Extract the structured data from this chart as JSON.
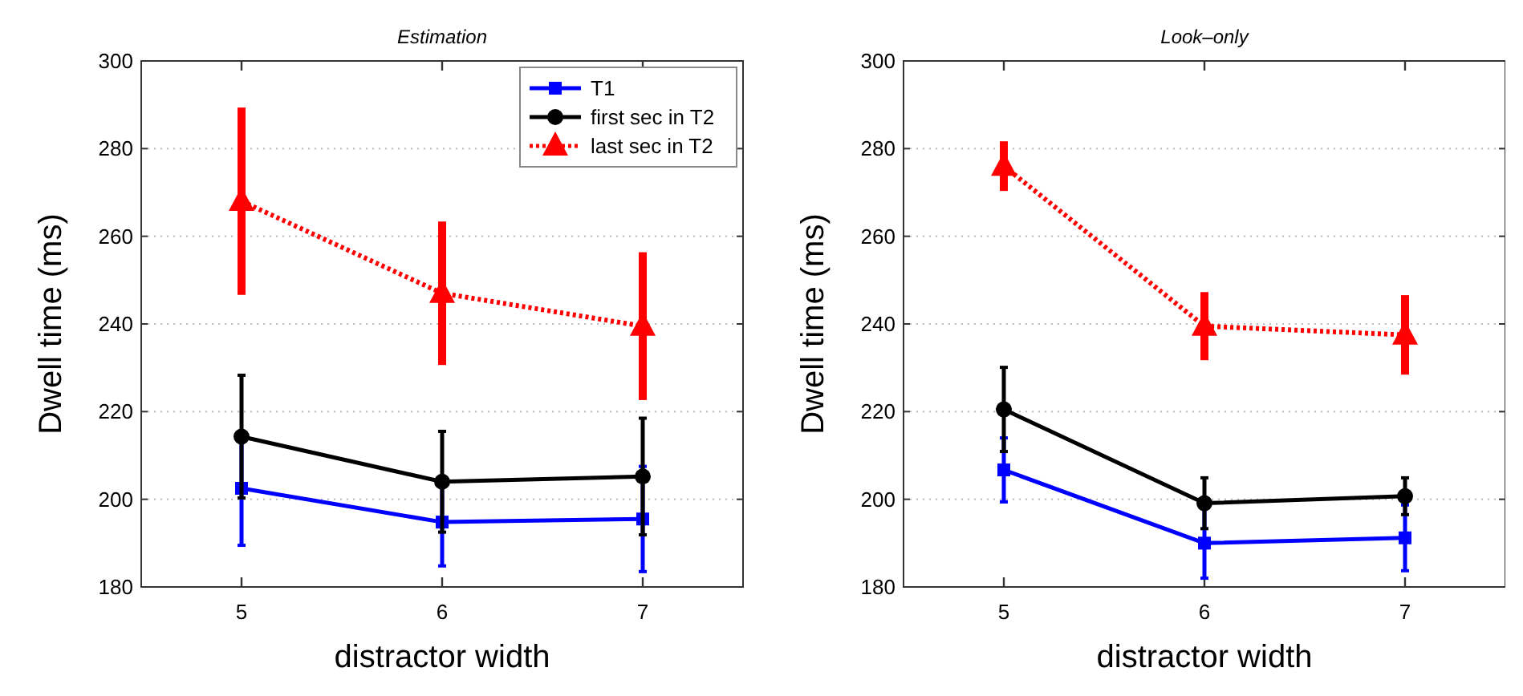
{
  "chart_data": [
    {
      "type": "line",
      "title": "Estimation",
      "xlabel": "distractor width",
      "ylabel": "Dwell time (ms)",
      "x": [
        5,
        6,
        7
      ],
      "xlim": [
        4.5,
        7.5
      ],
      "xticks": [
        5,
        6,
        7
      ],
      "ylim": [
        180,
        300
      ],
      "yticks": [
        180,
        200,
        220,
        240,
        260,
        280,
        300
      ],
      "grid": "y",
      "legend": "top right",
      "series": [
        {
          "name": "T1",
          "color": "#0000ff",
          "marker": "square",
          "line_style": "solid",
          "values": [
            202.5,
            194.8,
            195.5
          ],
          "errors": [
            13,
            10,
            12
          ]
        },
        {
          "name": "first sec in T2",
          "color": "#000000",
          "marker": "circle",
          "line_style": "solid",
          "values": [
            214.3,
            204,
            205.2
          ],
          "errors": [
            14,
            11.5,
            13.3
          ]
        },
        {
          "name": "last sec in T2",
          "color": "#ff0000",
          "marker": "triangle",
          "line_style": "dotted",
          "values": [
            268,
            247,
            239.5
          ],
          "errors": [
            21,
            16,
            16.5
          ]
        }
      ]
    },
    {
      "type": "line",
      "title": "Look–only",
      "xlabel": "distractor width",
      "ylabel": "Dwell time (ms)",
      "x": [
        5,
        6,
        7
      ],
      "xlim": [
        4.5,
        7.5
      ],
      "xticks": [
        5,
        6,
        7
      ],
      "ylim": [
        180,
        300
      ],
      "yticks": [
        180,
        200,
        220,
        240,
        260,
        280,
        300
      ],
      "grid": "y",
      "legend": false,
      "series": [
        {
          "color": "#0000ff",
          "marker": "square",
          "line_style": "solid",
          "values": [
            206.7,
            190,
            191.2
          ],
          "errors": [
            7.3,
            8,
            7.5
          ]
        },
        {
          "color": "#000000",
          "marker": "circle",
          "line_style": "solid",
          "values": [
            220.5,
            199.1,
            200.7
          ],
          "errors": [
            9.6,
            5.8,
            4.2
          ]
        },
        {
          "color": "#ff0000",
          "marker": "triangle",
          "line_style": "dotted",
          "values": [
            276,
            239.5,
            237.5
          ],
          "errors": [
            5.3,
            7.4,
            8.7
          ]
        }
      ]
    }
  ]
}
